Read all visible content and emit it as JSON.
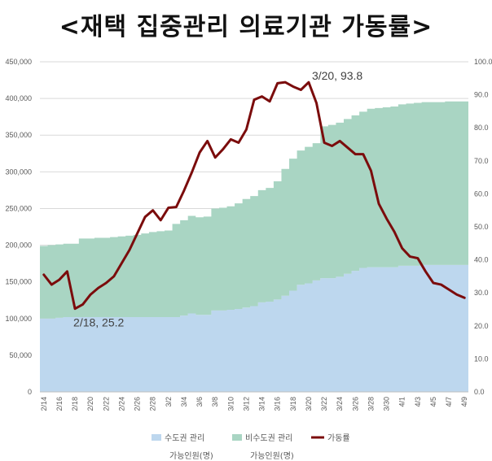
{
  "title": "<재택 집중관리 의료기관 가동률>",
  "chart_data": {
    "type": "area",
    "x": [
      "2/14",
      "2/15",
      "2/16",
      "2/17",
      "2/18",
      "2/19",
      "2/20",
      "2/21",
      "2/22",
      "2/23",
      "2/24",
      "2/25",
      "2/26",
      "2/27",
      "2/28",
      "3/1",
      "3/2",
      "3/3",
      "3/4",
      "3/5",
      "3/6",
      "3/7",
      "3/8",
      "3/9",
      "3/10",
      "3/11",
      "3/12",
      "3/13",
      "3/14",
      "3/15",
      "3/16",
      "3/17",
      "3/18",
      "3/19",
      "3/20",
      "3/21",
      "3/22",
      "3/23",
      "3/24",
      "3/25",
      "3/26",
      "3/27",
      "3/28",
      "3/29",
      "3/30",
      "3/31",
      "4/1",
      "4/2",
      "4/3",
      "4/4",
      "4/5",
      "4/6",
      "4/7",
      "4/8",
      "4/9"
    ],
    "x_tick_labels": [
      "2/14",
      "2/16",
      "2/18",
      "2/20",
      "2/22",
      "2/24",
      "2/26",
      "2/28",
      "3/2",
      "3/4",
      "3/6",
      "3/8",
      "3/10",
      "3/12",
      "3/14",
      "3/16",
      "3/18",
      "3/20",
      "3/22",
      "3/24",
      "3/26",
      "3/28",
      "3/30",
      "4/1",
      "4/3",
      "4/5",
      "4/7",
      "4/9"
    ],
    "y_left_ticks": [
      "0",
      "50,000",
      "100,000",
      "150,000",
      "200,000",
      "250,000",
      "300,000",
      "350,000",
      "400,000",
      "450,000"
    ],
    "y_right_ticks": [
      "0.0",
      "10.0",
      "20.0",
      "30.0",
      "40.0",
      "50.0",
      "60.0",
      "70.0",
      "80.0",
      "90.0",
      "100.0"
    ],
    "ylim_left": [
      0,
      450000
    ],
    "ylim_right": [
      0,
      100
    ],
    "grid": true,
    "legend_position": "bottom",
    "series": [
      {
        "name": "수도권 관리",
        "name_line2": "가능인원(명)",
        "kind": "stacked-area",
        "axis": "left",
        "color": "#bdd7ee",
        "values": [
          100000,
          100000,
          101000,
          102000,
          102000,
          102000,
          102000,
          102000,
          102000,
          102000,
          102000,
          102000,
          102000,
          102000,
          102000,
          102000,
          102000,
          102000,
          104000,
          107000,
          105000,
          105000,
          111000,
          111000,
          112000,
          113000,
          115000,
          117000,
          122000,
          123000,
          126000,
          131000,
          138000,
          146000,
          148000,
          152000,
          155000,
          155000,
          157000,
          161000,
          165000,
          169000,
          170000,
          170000,
          170000,
          170000,
          172000,
          172000,
          172000,
          173000,
          173000,
          173000,
          173000,
          173000,
          173000
        ]
      },
      {
        "name": "비수도권 관리",
        "name_line2": "가능인원(명)",
        "kind": "stacked-area",
        "axis": "left",
        "color": "#a9d5c3",
        "values": [
          99000,
          100000,
          100000,
          100000,
          100000,
          107000,
          107000,
          108000,
          108000,
          109000,
          110000,
          111000,
          112000,
          114000,
          116000,
          117000,
          118000,
          127000,
          130000,
          133000,
          133000,
          134000,
          139000,
          140000,
          141000,
          144000,
          148000,
          150000,
          153000,
          155000,
          161000,
          173000,
          180000,
          183000,
          186000,
          187000,
          207000,
          209000,
          210000,
          211000,
          212000,
          213000,
          216000,
          217000,
          218000,
          219000,
          220000,
          221000,
          222000,
          222000,
          222000,
          222000,
          223000,
          223000,
          223000
        ]
      },
      {
        "name": "가동률",
        "kind": "line",
        "axis": "right",
        "color": "#7b0c0c",
        "values": [
          35.5,
          32.5,
          34.0,
          36.5,
          25.2,
          26.5,
          29.5,
          31.5,
          33.0,
          35.0,
          39.0,
          43.0,
          48.0,
          53.0,
          55.0,
          52.0,
          55.8,
          56.0,
          61.0,
          66.5,
          72.5,
          76.0,
          71.0,
          73.5,
          76.5,
          75.5,
          79.5,
          88.5,
          89.5,
          88.0,
          93.5,
          93.8,
          92.5,
          91.5,
          93.8,
          87.5,
          75.5,
          74.5,
          76.0,
          74.0,
          72.0,
          72.0,
          67.0,
          57.0,
          52.5,
          48.5,
          43.5,
          41.0,
          40.5,
          36.5,
          33.0,
          32.5,
          31.0,
          29.5,
          28.5
        ]
      }
    ],
    "annotations": [
      {
        "text": "2/18, 25.2",
        "x": "2/18",
        "y": 25.2
      },
      {
        "text": "3/20, 93.8",
        "x": "3/20",
        "y": 93.8
      }
    ]
  }
}
